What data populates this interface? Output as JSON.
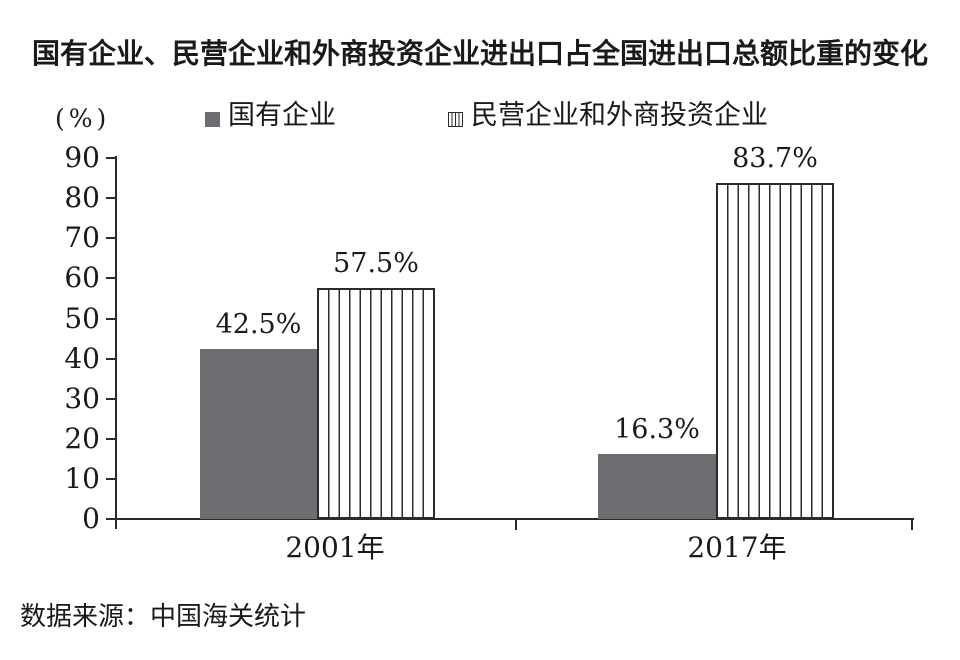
{
  "title": "国有企业、民营企业和外商投资企业进出口占全国进出口总额比重的变化",
  "unit_label": "(%)",
  "legend": {
    "items": [
      {
        "label": "国有企业",
        "swatch": "solid-gray"
      },
      {
        "label": "民营企业和外商投资企业",
        "swatch": "vertical-stripes"
      }
    ]
  },
  "source": "数据来源：中国海关统计",
  "colors": {
    "bar_gray": "#6b6d71",
    "stripe_line": "#2b2b2b",
    "axis": "#2a2a2a",
    "text": "#1a1a1a",
    "background": "#ffffff"
  },
  "chart_data": {
    "type": "bar",
    "title": "国有企业、民营企业和外商投资企业进出口占全国进出口总额比重的变化",
    "categories": [
      "2001年",
      "2017年"
    ],
    "series": [
      {
        "name": "国有企业",
        "style": "solid-gray",
        "values": [
          42.5,
          16.3
        ]
      },
      {
        "name": "民营企业和外商投资企业",
        "style": "vertical-stripes",
        "values": [
          57.5,
          83.7
        ]
      }
    ],
    "value_labels": [
      [
        "42.5%",
        "16.3%"
      ],
      [
        "57.5%",
        "83.7%"
      ]
    ],
    "xlabel": "",
    "ylabel": "(%)",
    "ylim": [
      0,
      90
    ],
    "y_ticks": [
      0,
      10,
      20,
      30,
      40,
      50,
      60,
      70,
      80,
      90
    ],
    "grid": false,
    "legend_position": "top"
  }
}
